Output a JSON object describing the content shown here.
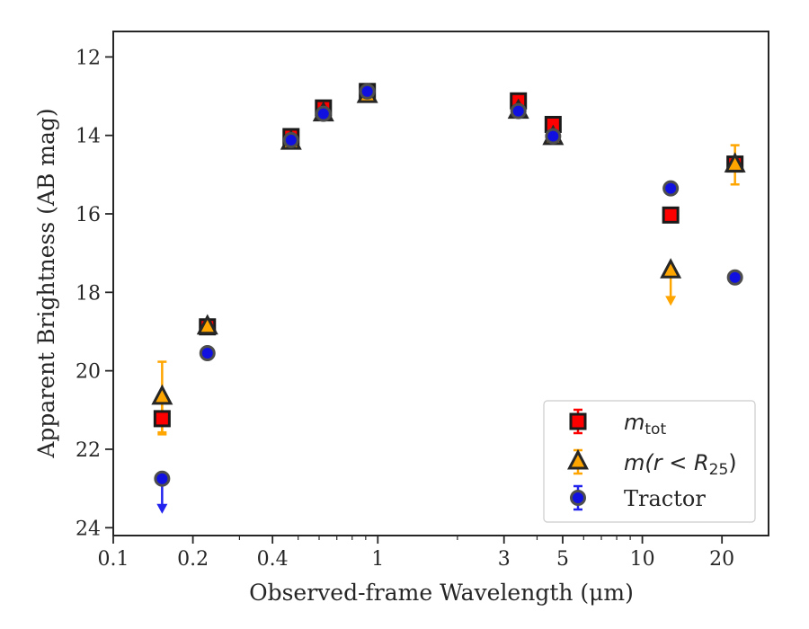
{
  "chart_data": {
    "type": "scatter",
    "title": "",
    "xlabel": "Observed-frame Wavelength (μm)",
    "ylabel": "Apparent Brightness (AB mag)",
    "xscale": "log",
    "xlim": [
      0.1,
      30
    ],
    "ylim": [
      24.2,
      11.35
    ],
    "y_inverted": true,
    "x_ticks": [
      {
        "value": 0.1,
        "label": "0.1"
      },
      {
        "value": 0.2,
        "label": "0.2"
      },
      {
        "value": 0.4,
        "label": "0.4"
      },
      {
        "value": 1,
        "label": "1"
      },
      {
        "value": 3,
        "label": "3"
      },
      {
        "value": 5,
        "label": "5"
      },
      {
        "value": 10,
        "label": "10"
      },
      {
        "value": 20,
        "label": "20"
      }
    ],
    "y_ticks": [
      {
        "value": 12,
        "label": "12"
      },
      {
        "value": 14,
        "label": "14"
      },
      {
        "value": 16,
        "label": "16"
      },
      {
        "value": 18,
        "label": "18"
      },
      {
        "value": 20,
        "label": "20"
      },
      {
        "value": 22,
        "label": "22"
      },
      {
        "value": 24,
        "label": "24"
      }
    ],
    "grid": false,
    "legend": {
      "position": "lower-right",
      "entries": [
        {
          "name_main": "m",
          "name_sub": "tot",
          "name_tail": "",
          "marker": "square"
        },
        {
          "name_main": "m(r < R",
          "name_sub": "25",
          "name_tail": ")",
          "marker": "triangle"
        },
        {
          "name_main": "Tractor",
          "name_sub": "",
          "name_tail": "",
          "marker": "circle"
        }
      ]
    },
    "series": [
      {
        "name": "m_tot",
        "marker": "square",
        "color": "#ff0000",
        "edge_color": "#1a1a1a",
        "error_color": "#ff0000",
        "points": [
          {
            "x": 0.153,
            "y": 21.22,
            "err": 0.4,
            "err_color": "#ffa500"
          },
          {
            "x": 0.227,
            "y": 18.88,
            "err": 0.12
          },
          {
            "x": 0.47,
            "y": 14.03
          },
          {
            "x": 0.623,
            "y": 13.3
          },
          {
            "x": 0.913,
            "y": 12.88
          },
          {
            "x": 3.4,
            "y": 13.12
          },
          {
            "x": 4.6,
            "y": 13.72
          },
          {
            "x": 12.8,
            "y": 16.03
          },
          {
            "x": 22.4,
            "y": 14.73
          }
        ]
      },
      {
        "name": "m(r<R25)",
        "marker": "triangle",
        "color": "#ffa500",
        "edge_color": "#262626",
        "error_color": "#ffa500",
        "points": [
          {
            "x": 0.153,
            "y": 20.67,
            "err": 0.9
          },
          {
            "x": 0.227,
            "y": 18.88
          },
          {
            "x": 0.47,
            "y": 14.17
          },
          {
            "x": 0.623,
            "y": 13.45
          },
          {
            "x": 0.913,
            "y": 12.98
          },
          {
            "x": 3.4,
            "y": 13.38
          },
          {
            "x": 4.6,
            "y": 14.05
          },
          {
            "x": 12.8,
            "y": 17.45,
            "upper_limit": true,
            "limit_to": 18.3
          },
          {
            "x": 22.4,
            "y": 14.75,
            "err": 0.5
          }
        ]
      },
      {
        "name": "Tractor",
        "marker": "circle",
        "color": "#1010e0",
        "edge_color": "#4d4d4d",
        "error_color": "#2222ee",
        "points": [
          {
            "x": 0.153,
            "y": 22.75,
            "upper_limit": true,
            "limit_to": 23.6
          },
          {
            "x": 0.227,
            "y": 19.55
          },
          {
            "x": 0.47,
            "y": 14.12
          },
          {
            "x": 0.623,
            "y": 13.45
          },
          {
            "x": 0.913,
            "y": 12.88
          },
          {
            "x": 3.4,
            "y": 13.38
          },
          {
            "x": 4.6,
            "y": 14.02
          },
          {
            "x": 12.8,
            "y": 15.35
          },
          {
            "x": 22.4,
            "y": 17.62
          }
        ]
      }
    ]
  }
}
